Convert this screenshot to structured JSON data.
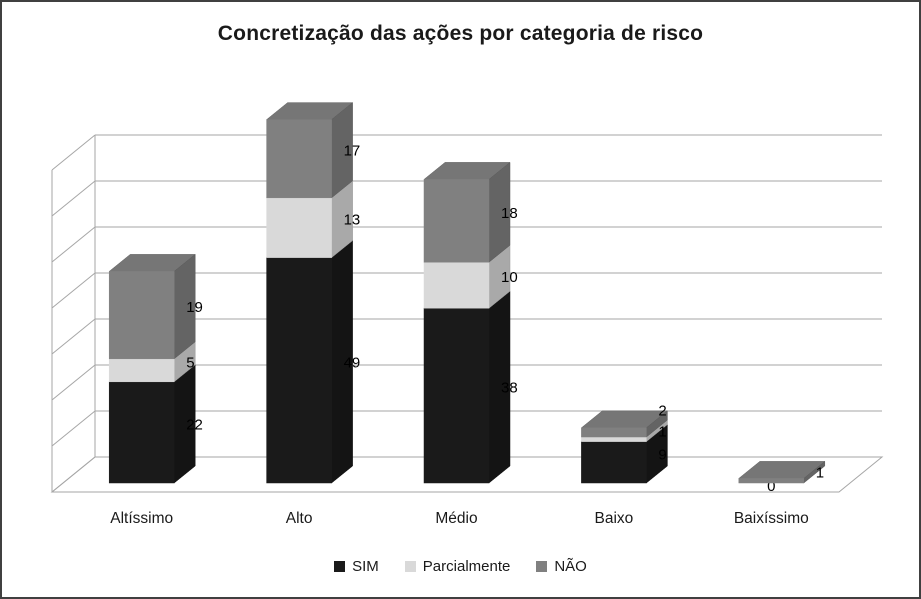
{
  "title": "Concretização das ações por categoria de risco",
  "chart_data": {
    "type": "bar",
    "subtype": "stacked-column-3d",
    "title": "Concretização das ações por categoria de risco",
    "categories": [
      "Altíssimo",
      "Alto",
      "Médio",
      "Baixo",
      "Baixíssimo"
    ],
    "series": [
      {
        "name": "SIM",
        "color": "#1a1a1a",
        "values": [
          22,
          49,
          38,
          9,
          0
        ],
        "labels": [
          "22",
          "49",
          "38",
          "9",
          "0"
        ]
      },
      {
        "name": "Parcialmente",
        "color": "#d9d9d9",
        "values": [
          5,
          13,
          10,
          1,
          0
        ],
        "labels": [
          "5",
          "13",
          "10",
          "1",
          null
        ]
      },
      {
        "name": "NÃO",
        "color": "#808080",
        "values": [
          19,
          17,
          18,
          2,
          1
        ],
        "labels": [
          "19",
          "17",
          "18",
          "2",
          "1"
        ]
      }
    ],
    "totals": [
      46,
      79,
      66,
      12,
      1
    ],
    "ylim": [
      0,
      70
    ],
    "grid_step": 10,
    "grid": true,
    "value_axis_labels": false,
    "legend_position": "bottom",
    "xlabel": "",
    "ylabel": ""
  },
  "colors": {
    "gridline": "#a6a6a6",
    "wall_line": "#a6a6a6",
    "label_text": "#000000",
    "category_text": "#1a1a1a",
    "title_text": "#1a1a1a",
    "border": "#404040",
    "background": "#ffffff"
  }
}
